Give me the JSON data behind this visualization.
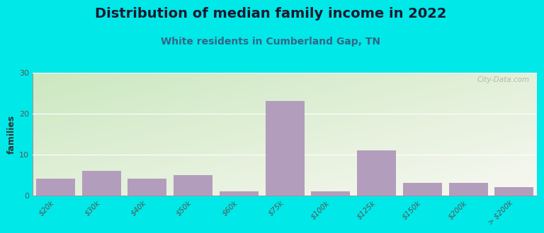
{
  "title": "Distribution of median family income in 2022",
  "subtitle": "White residents in Cumberland Gap, TN",
  "categories": [
    "$20k",
    "$30k",
    "$40k",
    "$50k",
    "$60k",
    "$75k",
    "$100k",
    "$125k",
    "$150k",
    "$200k",
    "> $200k"
  ],
  "values": [
    4,
    6,
    4,
    5,
    1,
    23,
    1,
    11,
    3,
    3,
    2
  ],
  "bar_color": "#b39dbd",
  "background_outer": "#00e8e8",
  "background_inner_topleft": "#cce8c0",
  "background_inner_bottomright": "#f8f8f2",
  "ylabel": "families",
  "ylim": [
    0,
    30
  ],
  "yticks": [
    0,
    10,
    20,
    30
  ],
  "title_fontsize": 14,
  "subtitle_fontsize": 10,
  "watermark": "City-Data.com"
}
